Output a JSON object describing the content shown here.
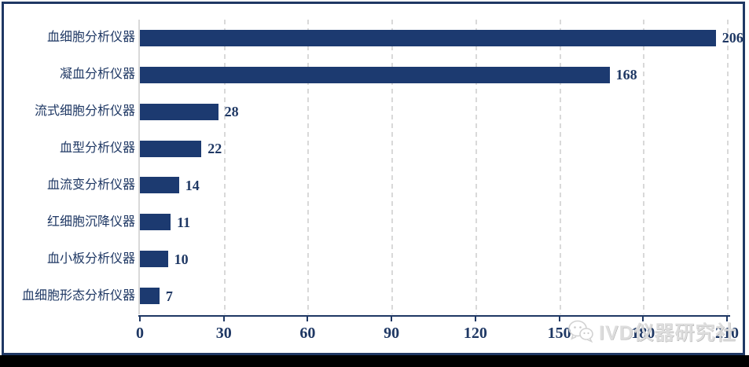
{
  "chart_data": {
    "type": "bar",
    "orientation": "horizontal",
    "title": "",
    "xlabel": "",
    "ylabel": "",
    "categories": [
      "血细胞分析仪器",
      "凝血分析仪器",
      "流式细胞分析仪器",
      "血型分析仪器",
      "血流变分析仪器",
      "红细胞沉降仪器",
      "血小板分析仪器",
      "血细胞形态分析仪器"
    ],
    "values": [
      206,
      168,
      28,
      22,
      14,
      11,
      10,
      7
    ],
    "x_ticks": [
      0,
      30,
      60,
      90,
      120,
      150,
      180,
      210
    ],
    "xlim": [
      0,
      210
    ],
    "grid": true,
    "gridline_style": "dashed",
    "legend_position": "none",
    "colors": {
      "bar": "#1c3a70",
      "text": "#1f3864",
      "axis": "#1f3864",
      "gridline": "#d9d9d9",
      "frame": "#1f3864",
      "background": "#ffffff"
    }
  },
  "watermark": {
    "icon": "wechat-logo",
    "text": "IVD仪器研究社"
  }
}
